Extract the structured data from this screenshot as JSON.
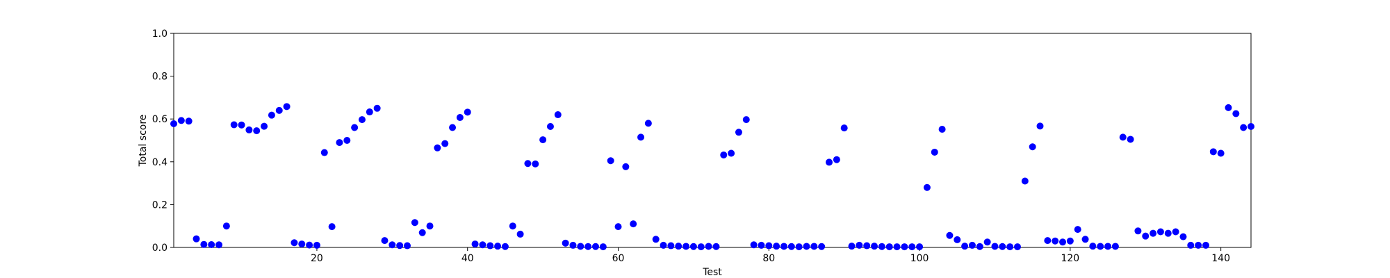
{
  "chart_data": {
    "type": "scatter",
    "title": "",
    "xlabel": "Test",
    "ylabel": "Total score",
    "xlim": [
      1,
      144
    ],
    "ylim": [
      0.0,
      1.0
    ],
    "xticks": [
      20,
      40,
      60,
      80,
      100,
      120,
      140
    ],
    "xtick_labels": [
      "20",
      "40",
      "60",
      "80",
      "100",
      "120",
      "140"
    ],
    "yticks": [
      0.0,
      0.2,
      0.4,
      0.6,
      0.8,
      1.0
    ],
    "ytick_labels": [
      "0.0",
      "0.2",
      "0.4",
      "0.6",
      "0.8",
      "1.0"
    ],
    "grid": false,
    "marker_color": "#0000ff",
    "series": [
      {
        "x": [
          1,
          2,
          3,
          4,
          5,
          6,
          7,
          8,
          9,
          10,
          11,
          12,
          13,
          14,
          15,
          16,
          17,
          18,
          19,
          20,
          21,
          22,
          23,
          24,
          25,
          26,
          27,
          28,
          29,
          30,
          31,
          32,
          33,
          34,
          35,
          36,
          37,
          38,
          39,
          40,
          41,
          42,
          43,
          44,
          45,
          46,
          47,
          48,
          49,
          50,
          51,
          52,
          53,
          54,
          55,
          56,
          57,
          58,
          59,
          60,
          61,
          62,
          63,
          64,
          65,
          66,
          67,
          68,
          69,
          70,
          71,
          72,
          73,
          74,
          75,
          76,
          77,
          78,
          79,
          80,
          81,
          82,
          83,
          84,
          85,
          86,
          87,
          88,
          89,
          90,
          91,
          92,
          93,
          94,
          95,
          96,
          97,
          98,
          99,
          100,
          101,
          102,
          103,
          104,
          105,
          106,
          107,
          108,
          109,
          110,
          111,
          112,
          113,
          114,
          115,
          116,
          117,
          118,
          119,
          120,
          121,
          122,
          123,
          124,
          125,
          126,
          127,
          128,
          129,
          130,
          131,
          132,
          133,
          134,
          135,
          136,
          137,
          138,
          139,
          140,
          141,
          142,
          143,
          144
        ],
        "values": [
          0.578,
          0.593,
          0.59,
          0.04,
          0.014,
          0.013,
          0.012,
          0.1,
          0.573,
          0.572,
          0.549,
          0.545,
          0.566,
          0.618,
          0.64,
          0.658,
          0.022,
          0.016,
          0.011,
          0.01,
          0.443,
          0.097,
          0.49,
          0.5,
          0.56,
          0.597,
          0.633,
          0.65,
          0.032,
          0.012,
          0.009,
          0.008,
          0.116,
          0.069,
          0.1,
          0.465,
          0.485,
          0.56,
          0.607,
          0.632,
          0.016,
          0.012,
          0.008,
          0.006,
          0.004,
          0.1,
          0.062,
          0.392,
          0.39,
          0.503,
          0.565,
          0.62,
          0.02,
          0.01,
          0.005,
          0.004,
          0.004,
          0.003,
          0.405,
          0.097,
          0.377,
          0.11,
          0.515,
          0.58,
          0.038,
          0.01,
          0.008,
          0.006,
          0.005,
          0.004,
          0.003,
          0.005,
          0.004,
          0.432,
          0.44,
          0.538,
          0.597,
          0.012,
          0.01,
          0.008,
          0.006,
          0.005,
          0.004,
          0.003,
          0.005,
          0.005,
          0.004,
          0.398,
          0.41,
          0.558,
          0.006,
          0.01,
          0.008,
          0.006,
          0.004,
          0.003,
          0.003,
          0.003,
          0.003,
          0.003,
          0.28,
          0.445,
          0.552,
          0.056,
          0.036,
          0.006,
          0.01,
          0.004,
          0.025,
          0.005,
          0.004,
          0.003,
          0.003,
          0.31,
          0.47,
          0.567,
          0.032,
          0.03,
          0.025,
          0.03,
          0.084,
          0.038,
          0.006,
          0.005,
          0.005,
          0.005,
          0.515,
          0.505,
          0.077,
          0.053,
          0.066,
          0.073,
          0.066,
          0.073,
          0.05,
          0.01,
          0.01,
          0.01,
          0.447,
          0.44,
          0.653,
          0.625,
          0.56,
          0.565
        ]
      }
    ]
  }
}
